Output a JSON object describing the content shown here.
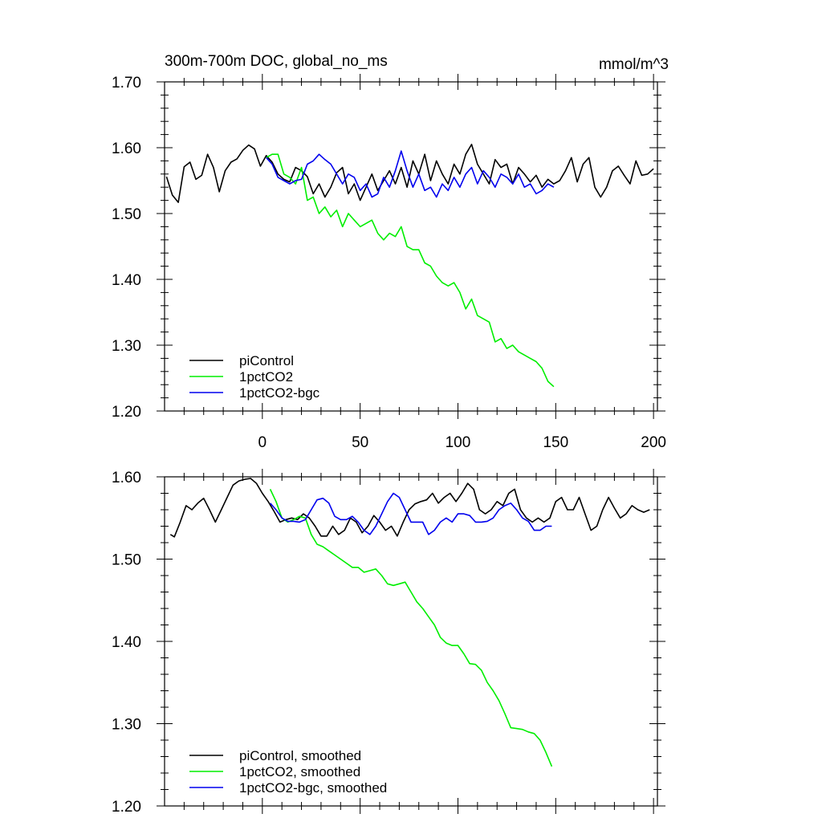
{
  "chart_data": [
    {
      "type": "line",
      "title": "300m-700m DOC, global_no_ms",
      "units": "mmol/m^3",
      "xlim": [
        -50,
        202
      ],
      "ylim": [
        1.2,
        1.7
      ],
      "xticks": [
        0,
        50,
        100,
        150,
        200
      ],
      "yticks": [
        1.2,
        1.3,
        1.4,
        1.5,
        1.6,
        1.7
      ],
      "ytick_labels": [
        "1.20",
        "1.30",
        "1.40",
        "1.50",
        "1.60",
        "1.70"
      ],
      "grid": false,
      "legend_position": "bottom-left",
      "series": [
        {
          "name": "piControl",
          "color": "#000000",
          "x": [
            -49,
            -46,
            -43,
            -40,
            -37,
            -34,
            -31,
            -28,
            -25,
            -22,
            -19,
            -16,
            -13,
            -10,
            -7,
            -4,
            -1,
            2,
            5,
            8,
            11,
            14,
            17,
            20,
            23,
            26,
            29,
            32,
            35,
            38,
            41,
            44,
            47,
            50,
            53,
            56,
            59,
            62,
            65,
            68,
            71,
            74,
            77,
            80,
            83,
            86,
            89,
            92,
            95,
            98,
            101,
            104,
            107,
            110,
            113,
            116,
            119,
            122,
            125,
            128,
            131,
            134,
            137,
            140,
            143,
            146,
            149,
            152,
            155,
            158,
            161,
            164,
            167,
            170,
            173,
            176,
            179,
            182,
            185,
            188,
            191,
            194,
            197,
            200
          ],
          "values": [
            1.556,
            1.528,
            1.517,
            1.571,
            1.578,
            1.552,
            1.558,
            1.59,
            1.57,
            1.533,
            1.565,
            1.578,
            1.583,
            1.596,
            1.604,
            1.598,
            1.572,
            1.588,
            1.578,
            1.56,
            1.552,
            1.548,
            1.57,
            1.565,
            1.556,
            1.53,
            1.545,
            1.525,
            1.54,
            1.562,
            1.57,
            1.53,
            1.545,
            1.52,
            1.54,
            1.56,
            1.535,
            1.55,
            1.565,
            1.545,
            1.57,
            1.54,
            1.58,
            1.56,
            1.59,
            1.55,
            1.58,
            1.56,
            1.545,
            1.575,
            1.56,
            1.59,
            1.605,
            1.575,
            1.56,
            1.545,
            1.582,
            1.57,
            1.575,
            1.545,
            1.57,
            1.56,
            1.548,
            1.558,
            1.54,
            1.552,
            1.545,
            1.55,
            1.565,
            1.585,
            1.548,
            1.575,
            1.585,
            1.54,
            1.525,
            1.54,
            1.565,
            1.572,
            1.558,
            1.545,
            1.58,
            1.558,
            1.56,
            1.568
          ]
        },
        {
          "name": "1pctCO2",
          "color": "#00ee00",
          "x": [
            2,
            5,
            8,
            11,
            14,
            17,
            20,
            23,
            26,
            29,
            32,
            35,
            38,
            41,
            44,
            47,
            50,
            53,
            56,
            59,
            62,
            65,
            68,
            71,
            74,
            77,
            80,
            83,
            86,
            89,
            92,
            95,
            98,
            101,
            104,
            107,
            110,
            113,
            116,
            119,
            122,
            125,
            128,
            131,
            134,
            137,
            140,
            143,
            146,
            149
          ],
          "values": [
            1.585,
            1.59,
            1.59,
            1.56,
            1.555,
            1.545,
            1.57,
            1.52,
            1.525,
            1.5,
            1.51,
            1.495,
            1.505,
            1.48,
            1.5,
            1.49,
            1.48,
            1.485,
            1.49,
            1.47,
            1.46,
            1.47,
            1.465,
            1.48,
            1.45,
            1.445,
            1.445,
            1.425,
            1.42,
            1.405,
            1.395,
            1.39,
            1.395,
            1.38,
            1.355,
            1.37,
            1.345,
            1.34,
            1.335,
            1.305,
            1.31,
            1.295,
            1.3,
            1.29,
            1.285,
            1.28,
            1.275,
            1.265,
            1.245,
            1.237
          ]
        },
        {
          "name": "1pctCO2-bgc",
          "color": "#0000ee",
          "x": [
            2,
            5,
            8,
            11,
            14,
            17,
            20,
            23,
            26,
            29,
            32,
            35,
            38,
            41,
            44,
            47,
            50,
            53,
            56,
            59,
            62,
            65,
            68,
            71,
            74,
            77,
            80,
            83,
            86,
            89,
            92,
            95,
            98,
            101,
            104,
            107,
            110,
            113,
            116,
            119,
            122,
            125,
            128,
            131,
            134,
            137,
            140,
            143,
            146,
            149
          ],
          "values": [
            1.585,
            1.575,
            1.555,
            1.55,
            1.545,
            1.55,
            1.552,
            1.575,
            1.58,
            1.59,
            1.582,
            1.575,
            1.56,
            1.545,
            1.56,
            1.555,
            1.535,
            1.545,
            1.525,
            1.53,
            1.555,
            1.54,
            1.565,
            1.595,
            1.565,
            1.54,
            1.56,
            1.535,
            1.54,
            1.525,
            1.545,
            1.535,
            1.555,
            1.54,
            1.56,
            1.57,
            1.545,
            1.565,
            1.555,
            1.54,
            1.56,
            1.555,
            1.545,
            1.56,
            1.54,
            1.545,
            1.53,
            1.535,
            1.545,
            1.54
          ]
        }
      ]
    },
    {
      "type": "line",
      "xlim": [
        -50,
        202
      ],
      "ylim": [
        1.2,
        1.6
      ],
      "yticks": [
        1.2,
        1.3,
        1.4,
        1.5,
        1.6
      ],
      "ytick_labels": [
        "1.20",
        "1.30",
        "1.40",
        "1.50",
        "1.60"
      ],
      "grid": false,
      "legend_position": "bottom-left",
      "series": [
        {
          "name": "piControl, smoothed",
          "color": "#000000",
          "x": [
            -47,
            -45,
            -42,
            -39,
            -36,
            -33,
            -30,
            -27,
            -24,
            -21,
            -18,
            -15,
            -12,
            -9,
            -6,
            -3,
            0,
            3,
            6,
            9,
            12,
            15,
            18,
            21,
            24,
            27,
            30,
            33,
            36,
            39,
            42,
            45,
            48,
            51,
            54,
            57,
            60,
            63,
            66,
            69,
            72,
            75,
            78,
            81,
            84,
            87,
            90,
            93,
            96,
            99,
            102,
            105,
            108,
            111,
            114,
            117,
            120,
            123,
            126,
            129,
            132,
            135,
            138,
            141,
            144,
            147,
            150,
            153,
            156,
            159,
            162,
            165,
            168,
            171,
            174,
            177,
            180,
            183,
            186,
            189,
            192,
            195,
            198
          ],
          "values": [
            1.53,
            1.527,
            1.545,
            1.565,
            1.56,
            1.568,
            1.574,
            1.56,
            1.545,
            1.56,
            1.575,
            1.59,
            1.595,
            1.597,
            1.598,
            1.592,
            1.58,
            1.57,
            1.558,
            1.545,
            1.548,
            1.55,
            1.548,
            1.555,
            1.55,
            1.54,
            1.528,
            1.528,
            1.54,
            1.53,
            1.535,
            1.55,
            1.545,
            1.532,
            1.54,
            1.553,
            1.545,
            1.535,
            1.54,
            1.528,
            1.545,
            1.56,
            1.567,
            1.57,
            1.572,
            1.58,
            1.568,
            1.575,
            1.58,
            1.57,
            1.58,
            1.592,
            1.585,
            1.56,
            1.555,
            1.56,
            1.57,
            1.565,
            1.58,
            1.585,
            1.56,
            1.55,
            1.545,
            1.55,
            1.545,
            1.55,
            1.57,
            1.575,
            1.56,
            1.56,
            1.575,
            1.555,
            1.535,
            1.54,
            1.56,
            1.575,
            1.562,
            1.55,
            1.555,
            1.565,
            1.56,
            1.557,
            1.56
          ]
        },
        {
          "name": "1pctCO2, smoothed",
          "color": "#00ee00",
          "x": [
            4,
            7,
            10,
            13,
            16,
            19,
            22,
            25,
            28,
            31,
            34,
            37,
            40,
            43,
            46,
            49,
            52,
            55,
            58,
            61,
            64,
            67,
            70,
            73,
            76,
            79,
            82,
            85,
            88,
            91,
            94,
            97,
            100,
            103,
            106,
            109,
            112,
            115,
            118,
            121,
            124,
            127,
            130,
            133,
            136,
            139,
            142,
            145,
            148
          ],
          "values": [
            1.585,
            1.57,
            1.55,
            1.545,
            1.548,
            1.552,
            1.55,
            1.53,
            1.518,
            1.515,
            1.51,
            1.505,
            1.5,
            1.495,
            1.49,
            1.49,
            1.484,
            1.486,
            1.488,
            1.48,
            1.47,
            1.468,
            1.47,
            1.472,
            1.46,
            1.448,
            1.44,
            1.43,
            1.42,
            1.405,
            1.398,
            1.395,
            1.395,
            1.385,
            1.373,
            1.372,
            1.365,
            1.35,
            1.34,
            1.328,
            1.312,
            1.295,
            1.294,
            1.293,
            1.29,
            1.288,
            1.28,
            1.265,
            1.248
          ]
        },
        {
          "name": "1pctCO2-bgc, smoothed",
          "color": "#0000ee",
          "x": [
            4,
            7,
            10,
            13,
            16,
            19,
            22,
            25,
            28,
            31,
            34,
            37,
            40,
            43,
            46,
            49,
            52,
            55,
            58,
            61,
            64,
            67,
            70,
            73,
            76,
            79,
            82,
            85,
            88,
            91,
            94,
            97,
            100,
            103,
            106,
            109,
            112,
            115,
            118,
            121,
            124,
            127,
            130,
            133,
            136,
            139,
            142,
            145,
            148
          ],
          "values": [
            1.568,
            1.56,
            1.55,
            1.546,
            1.546,
            1.545,
            1.548,
            1.56,
            1.572,
            1.574,
            1.568,
            1.552,
            1.548,
            1.548,
            1.552,
            1.545,
            1.535,
            1.53,
            1.54,
            1.555,
            1.57,
            1.58,
            1.575,
            1.56,
            1.545,
            1.545,
            1.545,
            1.53,
            1.535,
            1.545,
            1.55,
            1.545,
            1.555,
            1.555,
            1.553,
            1.545,
            1.545,
            1.546,
            1.55,
            1.56,
            1.565,
            1.568,
            1.56,
            1.55,
            1.546,
            1.535,
            1.535,
            1.54,
            1.54
          ]
        }
      ]
    }
  ]
}
